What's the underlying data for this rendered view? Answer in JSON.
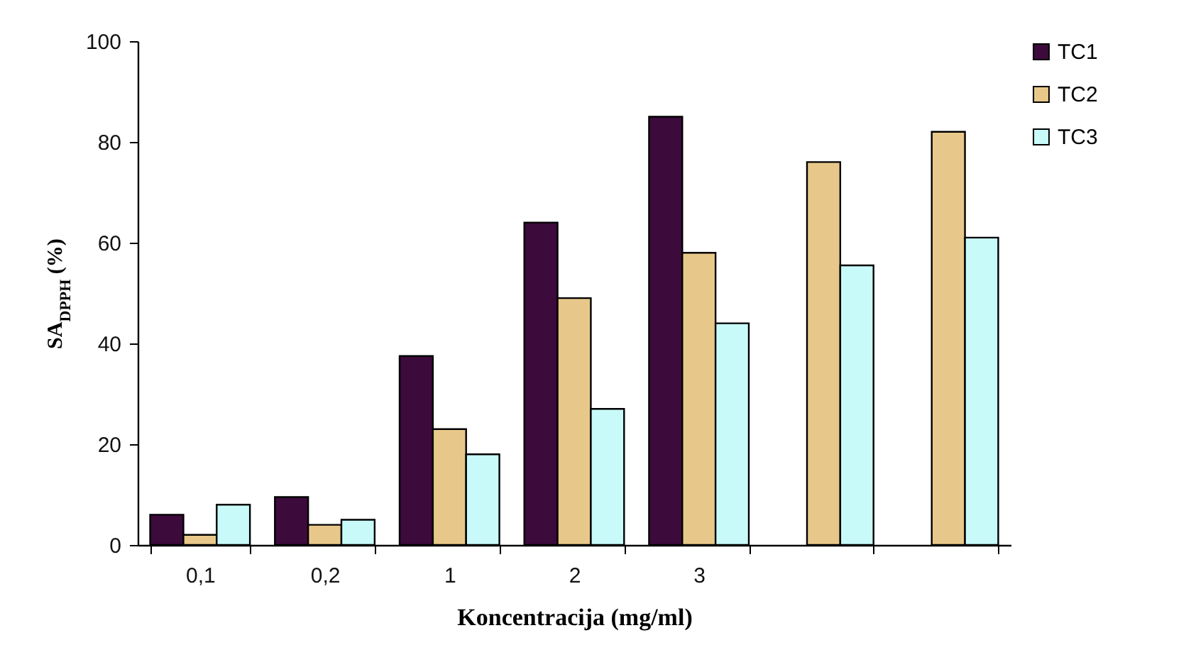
{
  "chart_data": {
    "type": "bar",
    "xlabel": "Koncentracija (mg/ml)",
    "ylabel": "SA$_{DPPH}$ (%)",
    "categories": [
      "0,1",
      "0,2",
      "1",
      "2",
      "3",
      null,
      null
    ],
    "series": [
      {
        "name": "TC1",
        "color": "#3d0a3c",
        "values": [
          6,
          9.5,
          37.5,
          64,
          85,
          null,
          null
        ]
      },
      {
        "name": "TC2",
        "color": "#e8c88a",
        "values": [
          2,
          4,
          23,
          49,
          58,
          76,
          82
        ]
      },
      {
        "name": "TC3",
        "color": "#c8fafa",
        "values": [
          8,
          5,
          18,
          27,
          44,
          55.5,
          61
        ]
      }
    ],
    "ylim": [
      0,
      100
    ],
    "yticks": [
      0,
      20,
      40,
      60,
      80,
      100
    ],
    "grid": false,
    "legend": "right"
  }
}
